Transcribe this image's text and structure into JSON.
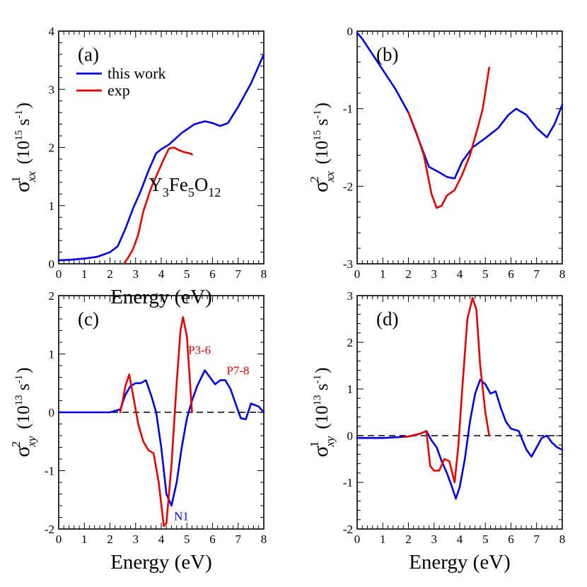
{
  "colors": {
    "blue": "#0000e6",
    "red": "#e60000",
    "axis": "#000000"
  },
  "chart_data": [
    {
      "panel": "(a)",
      "type": "line",
      "xlabel": "Energy (eV)",
      "ylabel": {
        "base": "σ",
        "sup": "1",
        "sub": "xx",
        "unit": "(10",
        "unit_exp": "15",
        "unit_rest": " s",
        "unit_rest_exp": "-1",
        "close": ")"
      },
      "xlim": [
        0,
        8
      ],
      "ylim": [
        0,
        4
      ],
      "xticks": [
        "0",
        "1",
        "2",
        "3",
        "4",
        "5",
        "6",
        "7",
        "8"
      ],
      "yticks": [
        "0",
        "1",
        "2",
        "3",
        "4"
      ],
      "legend": {
        "position": "top-left",
        "entries": [
          "this work",
          "exp"
        ]
      },
      "annotation": {
        "parts": [
          "Y",
          "3",
          "Fe",
          "5",
          "O",
          "12"
        ]
      },
      "series": [
        {
          "name": "this work",
          "color": "blue",
          "x": [
            0,
            0.5,
            1,
            1.5,
            2,
            2.3,
            2.6,
            2.9,
            3.2,
            3.5,
            3.8,
            4.0,
            4.3,
            4.8,
            5.3,
            5.7,
            6.0,
            6.3,
            6.6,
            7.0,
            7.5,
            8.0
          ],
          "y": [
            0.06,
            0.07,
            0.09,
            0.12,
            0.2,
            0.3,
            0.6,
            0.95,
            1.25,
            1.6,
            1.9,
            1.97,
            2.05,
            2.25,
            2.4,
            2.45,
            2.42,
            2.37,
            2.42,
            2.7,
            3.1,
            3.6
          ]
        },
        {
          "name": "exp",
          "color": "red",
          "x": [
            2.55,
            2.7,
            2.9,
            3.1,
            3.3,
            3.6,
            3.9,
            4.1,
            4.3,
            4.5,
            4.7,
            4.9,
            5.1,
            5.2
          ],
          "y": [
            0.0,
            0.1,
            0.25,
            0.5,
            0.9,
            1.3,
            1.6,
            1.8,
            1.98,
            2.0,
            1.95,
            1.92,
            1.9,
            1.88
          ]
        }
      ]
    },
    {
      "panel": "(b)",
      "type": "line",
      "xlabel": "",
      "ylabel": {
        "base": "σ",
        "sup": "2",
        "sub": "xx",
        "unit": "(10",
        "unit_exp": "15",
        "unit_rest": " s",
        "unit_rest_exp": "-1",
        "close": ")"
      },
      "xlim": [
        0,
        8
      ],
      "ylim": [
        -3,
        0
      ],
      "xticks": [
        "0",
        "1",
        "2",
        "3",
        "4",
        "5",
        "6",
        "7",
        "8"
      ],
      "yticks": [
        "-3",
        "-2",
        "-1",
        "0"
      ],
      "series": [
        {
          "name": "this work",
          "color": "blue",
          "x": [
            0,
            0.2,
            0.6,
            1.0,
            1.5,
            2.0,
            2.4,
            2.8,
            3.2,
            3.5,
            3.8,
            4.1,
            4.5,
            5.0,
            5.5,
            5.9,
            6.2,
            6.6,
            7.0,
            7.4,
            7.7,
            8.0
          ],
          "y": [
            -0.02,
            -0.1,
            -0.3,
            -0.5,
            -0.75,
            -1.05,
            -1.4,
            -1.75,
            -1.82,
            -1.88,
            -1.9,
            -1.68,
            -1.5,
            -1.38,
            -1.25,
            -1.08,
            -1.0,
            -1.08,
            -1.25,
            -1.37,
            -1.2,
            -0.95
          ]
        },
        {
          "name": "exp",
          "color": "red",
          "x": [
            2.0,
            2.3,
            2.6,
            2.9,
            3.1,
            3.3,
            3.5,
            3.8,
            4.1,
            4.4,
            4.7,
            4.9,
            5.15
          ],
          "y": [
            -1.05,
            -1.3,
            -1.6,
            -2.1,
            -2.28,
            -2.25,
            -2.12,
            -2.05,
            -1.85,
            -1.6,
            -1.25,
            -1.0,
            -0.47
          ]
        }
      ]
    },
    {
      "panel": "(c)",
      "type": "line",
      "xlabel": "Energy (eV)",
      "ylabel": {
        "base": "σ",
        "sup": "2",
        "sub": "xy",
        "unit": "(10",
        "unit_exp": "13",
        "unit_rest": " s",
        "unit_rest_exp": "-1",
        "close": ")"
      },
      "xlim": [
        0,
        8
      ],
      "ylim": [
        -2,
        2
      ],
      "xticks": [
        "0",
        "1",
        "2",
        "3",
        "4",
        "5",
        "6",
        "7",
        "8"
      ],
      "yticks": [
        "-2",
        "-1",
        "0",
        "1",
        "2"
      ],
      "zero_line": true,
      "annotations": [
        {
          "text": "P3-6",
          "color": "red",
          "x": 5.05,
          "y": 1.0
        },
        {
          "text": "P7-8",
          "color": "red",
          "x": 6.55,
          "y": 0.65
        },
        {
          "text": "N1",
          "color": "blue",
          "x": 4.5,
          "y": -1.85
        }
      ],
      "series": [
        {
          "name": "this work",
          "color": "blue",
          "x": [
            0,
            1.0,
            2.0,
            2.4,
            2.6,
            2.8,
            3.0,
            3.2,
            3.4,
            3.6,
            3.8,
            4.0,
            4.2,
            4.4,
            4.6,
            4.8,
            5.0,
            5.2,
            5.4,
            5.7,
            5.9,
            6.1,
            6.3,
            6.5,
            6.7,
            6.9,
            7.1,
            7.3,
            7.5,
            7.8,
            8.0
          ],
          "y": [
            0.0,
            0.0,
            0.0,
            0.05,
            0.3,
            0.45,
            0.5,
            0.5,
            0.55,
            0.3,
            0.0,
            -0.6,
            -1.4,
            -1.6,
            -1.2,
            -0.6,
            -0.1,
            0.2,
            0.45,
            0.72,
            0.6,
            0.48,
            0.55,
            0.55,
            0.4,
            0.15,
            -0.1,
            -0.12,
            0.15,
            0.1,
            0.0
          ]
        },
        {
          "name": "exp",
          "color": "red",
          "x": [
            2.4,
            2.5,
            2.6,
            2.75,
            2.9,
            3.1,
            3.3,
            3.5,
            3.7,
            3.9,
            4.1,
            4.2,
            4.4,
            4.6,
            4.75,
            4.85,
            5.0,
            5.2
          ],
          "y": [
            0.0,
            0.2,
            0.45,
            0.65,
            0.3,
            -0.2,
            -0.5,
            -0.65,
            -0.7,
            -1.2,
            -1.95,
            -1.9,
            -0.9,
            0.5,
            1.4,
            1.63,
            1.3,
            0.0
          ]
        }
      ]
    },
    {
      "panel": "(d)",
      "type": "line",
      "xlabel": "Energy (eV)",
      "ylabel": {
        "base": "σ",
        "sup": "1",
        "sub": "xy",
        "unit": "(10",
        "unit_exp": "13",
        "unit_rest": " s",
        "unit_rest_exp": "-1",
        "close": ")"
      },
      "xlim": [
        0,
        8
      ],
      "ylim": [
        -2,
        3
      ],
      "xticks": [
        "0",
        "1",
        "2",
        "3",
        "4",
        "5",
        "6",
        "7",
        "8"
      ],
      "yticks": [
        "-2",
        "-1",
        "0",
        "1",
        "2",
        "3"
      ],
      "zero_line": true,
      "series": [
        {
          "name": "this work",
          "color": "blue",
          "x": [
            0,
            1.0,
            2.0,
            2.5,
            2.7,
            2.9,
            3.1,
            3.3,
            3.5,
            3.7,
            3.85,
            4.0,
            4.2,
            4.4,
            4.6,
            4.8,
            5.0,
            5.2,
            5.4,
            5.6,
            5.8,
            6.0,
            6.3,
            6.6,
            6.8,
            7.0,
            7.2,
            7.4,
            7.6,
            7.8,
            8.0
          ],
          "y": [
            -0.05,
            -0.05,
            -0.02,
            0.05,
            0.1,
            -0.1,
            -0.25,
            -0.55,
            -0.8,
            -1.1,
            -1.35,
            -1.1,
            -0.5,
            0.3,
            0.9,
            1.2,
            1.1,
            0.9,
            0.95,
            0.6,
            0.3,
            0.15,
            0.1,
            -0.3,
            -0.45,
            -0.25,
            -0.05,
            0.0,
            -0.15,
            -0.25,
            -0.3
          ]
        },
        {
          "name": "exp",
          "color": "red",
          "x": [
            1.8,
            2.2,
            2.5,
            2.7,
            2.85,
            3.0,
            3.2,
            3.4,
            3.6,
            3.8,
            3.95,
            4.1,
            4.3,
            4.5,
            4.65,
            4.8,
            5.0,
            5.15
          ],
          "y": [
            -0.03,
            0.0,
            0.05,
            0.1,
            -0.65,
            -0.75,
            -0.75,
            -0.5,
            -0.55,
            -1.0,
            -0.2,
            1.0,
            2.5,
            2.95,
            2.7,
            1.5,
            0.5,
            0.0
          ]
        }
      ]
    }
  ]
}
